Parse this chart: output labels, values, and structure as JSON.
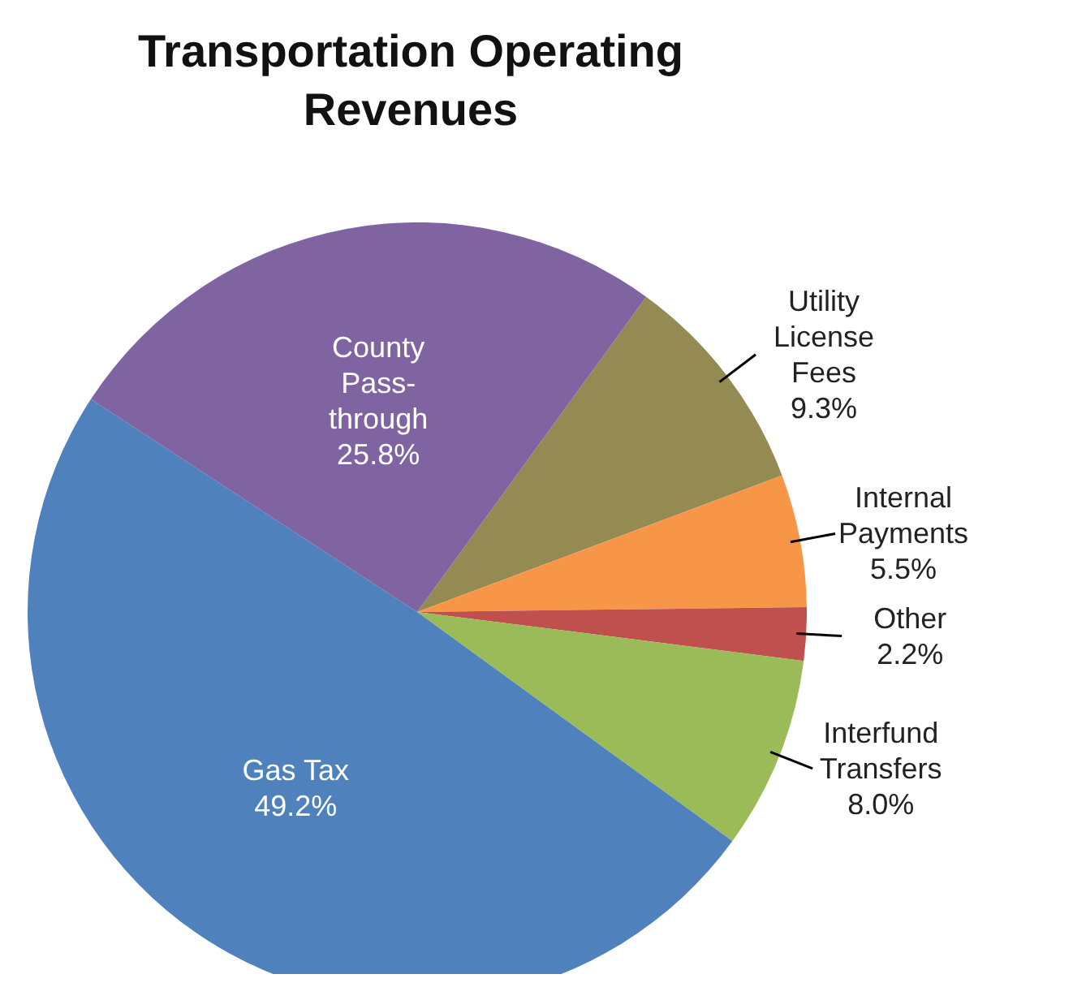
{
  "chart_data": {
    "type": "pie",
    "title": "Transportation Operating Revenues",
    "categories": [
      "Utility License Fees",
      "Internal Payments",
      "Other",
      "Interfund Transfers",
      "Gas Tax",
      "County Pass-through"
    ],
    "values": [
      9.3,
      5.5,
      2.2,
      8.0,
      49.2,
      25.8
    ],
    "colors": [
      "#948a54",
      "#f79646",
      "#c0504d",
      "#9bbb59",
      "#4f81bd",
      "#8064a2"
    ],
    "value_labels": [
      "9.3%",
      "5.5%",
      "2.2%",
      "8.0%",
      "49.2%",
      "25.8%"
    ],
    "legend": false
  }
}
